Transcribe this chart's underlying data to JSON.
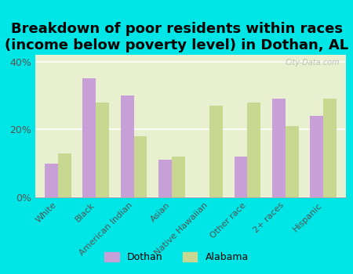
{
  "title": "Breakdown of poor residents within races\n(income below poverty level) in Dothan, AL",
  "categories": [
    "White",
    "Black",
    "American Indian",
    "Asian",
    "Native Hawaiian",
    "Other race",
    "2+ races",
    "Hispanic"
  ],
  "dothan_values": [
    10,
    35,
    30,
    11,
    0,
    12,
    29,
    24
  ],
  "alabama_values": [
    13,
    28,
    18,
    12,
    27,
    28,
    21,
    29
  ],
  "dothan_color": "#c8a0d8",
  "alabama_color": "#c8d890",
  "background_color": "#00e5e5",
  "plot_bg_color_top": "#e8f0d0",
  "plot_bg_color_bottom": "#f5fae8",
  "ylim": [
    0,
    42
  ],
  "yticks": [
    0,
    20,
    40
  ],
  "ytick_labels": [
    "0%",
    "20%",
    "40%"
  ],
  "title_fontsize": 13,
  "legend_labels": [
    "Dothan",
    "Alabama"
  ],
  "watermark": "City-Data.com"
}
